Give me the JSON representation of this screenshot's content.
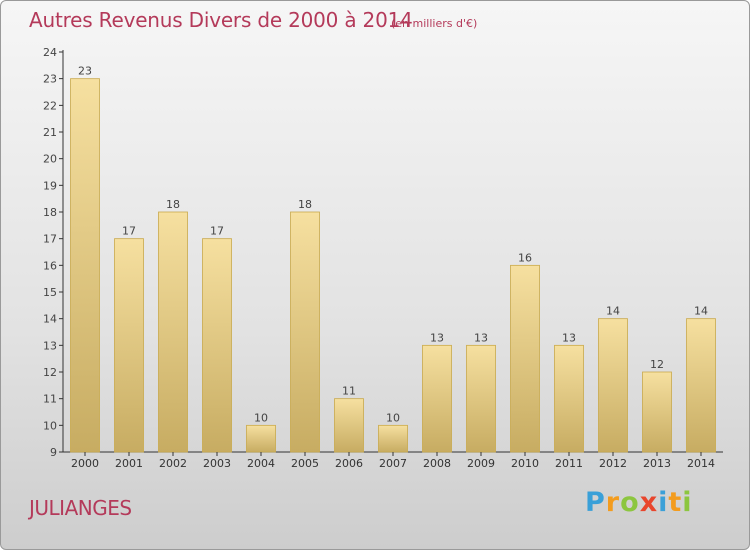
{
  "chart_data": {
    "type": "bar",
    "title": "Autres Revenus Divers de 2000 à 2014",
    "unit_note": "(en milliers d'€)",
    "categories": [
      "2000",
      "2001",
      "2002",
      "2003",
      "2004",
      "2005",
      "2006",
      "2007",
      "2008",
      "2009",
      "2010",
      "2011",
      "2012",
      "2013",
      "2014"
    ],
    "values": [
      23,
      17,
      18,
      17,
      10,
      18,
      11,
      10,
      13,
      13,
      16,
      13,
      14,
      12,
      14
    ],
    "ylim": [
      9,
      24
    ],
    "yticks": [
      9,
      10,
      11,
      12,
      13,
      14,
      15,
      16,
      17,
      18,
      19,
      20,
      21,
      22,
      23,
      24
    ],
    "grid": false,
    "bar_color": "#f0d68e",
    "bar_edge_color": "#c9a94c"
  },
  "location": "JULIANGES",
  "brand": {
    "letters": [
      "P",
      "r",
      "o",
      "x",
      "i",
      "t",
      "i"
    ],
    "colors": [
      "#3aa0d8",
      "#f39c1e",
      "#8cc63f",
      "#e8452c",
      "#3aa0d8",
      "#f39c1e",
      "#8cc63f"
    ]
  },
  "colors": {
    "title": "#b43a5a",
    "axis": "#333333",
    "label": "#444444"
  }
}
